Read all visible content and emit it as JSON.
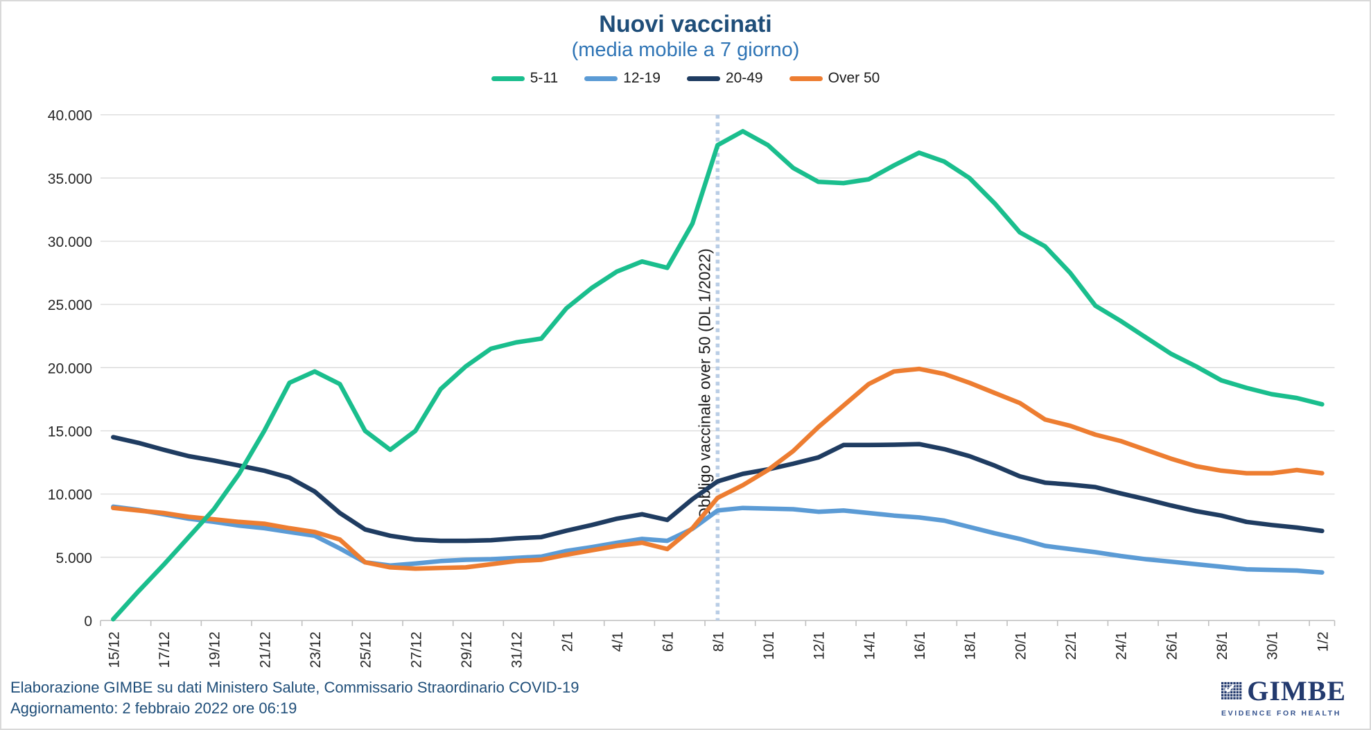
{
  "header": {
    "title": "Nuovi vaccinati",
    "subtitle": "(media mobile a 7 giorno)"
  },
  "legend": [
    {
      "label": "5-11",
      "color": "#1abe8d"
    },
    {
      "label": "12-19",
      "color": "#5b9bd5"
    },
    {
      "label": "20-49",
      "color": "#1f3c61"
    },
    {
      "label": "Over 50",
      "color": "#ed7d31"
    }
  ],
  "chart_data": {
    "type": "line",
    "title": "Nuovi vaccinati",
    "subtitle": "(media mobile a 7 giorno)",
    "grid": true,
    "legend_position": "top",
    "ylim": [
      0,
      40000
    ],
    "ytick_step": 5000,
    "ytick_labels": [
      "0",
      "5.000",
      "10.000",
      "15.000",
      "20.000",
      "25.000",
      "30.000",
      "35.000",
      "40.000"
    ],
    "x_label_step": 2,
    "x": [
      "15/12",
      "16/12",
      "17/12",
      "18/12",
      "19/12",
      "20/12",
      "21/12",
      "22/12",
      "23/12",
      "24/12",
      "25/12",
      "26/12",
      "27/12",
      "28/12",
      "29/12",
      "30/12",
      "31/12",
      "1/1",
      "2/1",
      "3/1",
      "4/1",
      "5/1",
      "6/1",
      "7/1",
      "8/1",
      "9/1",
      "10/1",
      "11/1",
      "12/1",
      "13/1",
      "14/1",
      "15/1",
      "16/1",
      "17/1",
      "18/1",
      "19/1",
      "20/1",
      "21/1",
      "22/1",
      "23/1",
      "24/1",
      "25/1",
      "26/1",
      "27/1",
      "28/1",
      "29/1",
      "30/1",
      "31/1",
      "1/2"
    ],
    "series": [
      {
        "name": "20-49",
        "color": "#1f3c61",
        "values": [
          14500,
          14050,
          13500,
          13000,
          12650,
          12250,
          11850,
          11300,
          10200,
          8500,
          7200,
          6700,
          6400,
          6300,
          6300,
          6350,
          6500,
          6600,
          7100,
          7550,
          8050,
          8400,
          7950,
          9600,
          11000,
          11600,
          11950,
          12400,
          12900,
          13880,
          13880,
          13900,
          13950,
          13550,
          13000,
          12250,
          11400,
          10900,
          10750,
          10550,
          10050,
          9600,
          9100,
          8650,
          8300,
          7800,
          7550,
          7350,
          7080
        ]
      },
      {
        "name": "12-19",
        "color": "#5b9bd5",
        "values": [
          9000,
          8750,
          8400,
          8050,
          7800,
          7500,
          7300,
          7000,
          6700,
          5700,
          4600,
          4350,
          4500,
          4700,
          4800,
          4850,
          4950,
          5050,
          5500,
          5800,
          6150,
          6450,
          6300,
          7250,
          8700,
          8900,
          8850,
          8800,
          8600,
          8700,
          8500,
          8300,
          8150,
          7900,
          7400,
          6900,
          6450,
          5900,
          5650,
          5400,
          5100,
          4850,
          4650,
          4450,
          4250,
          4050,
          4000,
          3950,
          3800
        ]
      },
      {
        "name": "Over 50",
        "color": "#ed7d31",
        "values": [
          8900,
          8700,
          8500,
          8200,
          8000,
          7800,
          7650,
          7300,
          7000,
          6400,
          4600,
          4200,
          4100,
          4150,
          4200,
          4450,
          4700,
          4800,
          5200,
          5550,
          5900,
          6150,
          5650,
          7300,
          9700,
          10700,
          11900,
          13400,
          15300,
          17000,
          18700,
          19700,
          19900,
          19500,
          18800,
          18000,
          17200,
          15900,
          15400,
          14700,
          14200,
          13500,
          12800,
          12200,
          11850,
          11650,
          11650,
          11900,
          11650
        ]
      },
      {
        "name": "5-11",
        "color": "#1abe8d",
        "values": [
          100,
          2300,
          4400,
          6600,
          8800,
          11600,
          15000,
          18800,
          19700,
          18700,
          15000,
          13500,
          15000,
          18300,
          20100,
          21500,
          22000,
          22300,
          24700,
          26300,
          27600,
          28400,
          27900,
          31400,
          37600,
          38700,
          37600,
          35800,
          34700,
          34600,
          34900,
          36000,
          37000,
          36300,
          35000,
          33000,
          30700,
          29600,
          27500,
          24900,
          23700,
          22400,
          21100,
          20100,
          19000,
          18400,
          17900,
          17600,
          17100
        ]
      }
    ],
    "annotation": {
      "text": "Obbligo vaccinale over 50 (DL 1/2022)",
      "x_label": "8/1",
      "x_index": 24,
      "line_color": "#b9cde5"
    }
  },
  "footer": {
    "line1": "Elaborazione GIMBE su dati Ministero Salute, Commissario Straordinario COVID-19",
    "line2": "Aggiornamento: 2 febbraio 2022 ore 06:19"
  },
  "logo": {
    "name": "GIMBE",
    "tagline": "EVIDENCE FOR HEALTH"
  }
}
